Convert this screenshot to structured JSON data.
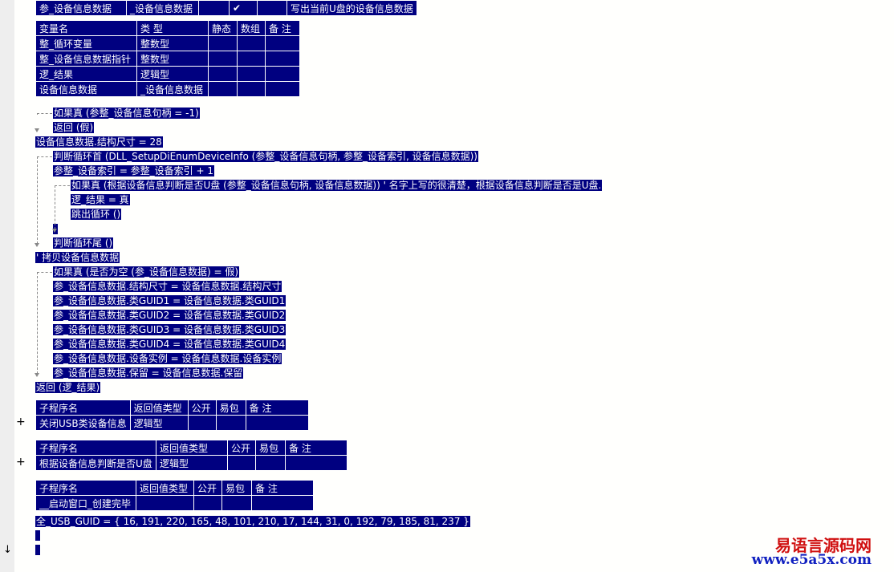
{
  "param_row": {
    "cells": [
      "参_设备信息数据",
      "_设备信息数据",
      "",
      "✔",
      "",
      "写出当前U盘的设备信息数据"
    ]
  },
  "var_table": {
    "header": [
      "变量名",
      "类 型",
      "静态",
      "数组",
      "备 注"
    ],
    "rows": [
      [
        "整_循环变量",
        "整数型",
        "",
        "",
        ""
      ],
      [
        "整_设备信息数据指针",
        "整数型",
        "",
        "",
        ""
      ],
      [
        "逻_结果",
        "逻辑型",
        "",
        "",
        ""
      ],
      [
        "设备信息数据",
        "_设备信息数据",
        "",
        "",
        ""
      ]
    ]
  },
  "code_lines": [
    {
      "text": "如果真 (参整_设备信息句柄 = -1)",
      "indent": 1
    },
    {
      "text": "返回 (假)",
      "indent": 1
    },
    {
      "text": "设备信息数据.结构尺寸 = 28",
      "indent": 0
    },
    {
      "text": "判断循环首 (DLL_SetupDiEnumDeviceInfo (参整_设备信息句柄, 参整_设备索引, 设备信息数据))",
      "indent": 1
    },
    {
      "text": "参整_设备索引 = 参整_设备索引 + 1",
      "indent": 1
    },
    {
      "text": "如果真 (根据设备信息判断是否U盘 (参整_设备信息句柄, 设备信息数据)) ' 名字上写的很清楚，根据设备信息判断是否是U盘.",
      "indent": 2
    },
    {
      "text": "逻_结果 = 真",
      "indent": 2
    },
    {
      "text": "跳出循环 ()",
      "indent": 2
    },
    {
      "text": "",
      "indent": 1,
      "cursor": true
    },
    {
      "text": "判断循环尾 ()",
      "indent": 1
    },
    {
      "text": "' 拷贝设备信息数据",
      "indent": 0
    },
    {
      "text": "如果真 (是否为空 (参_设备信息数据) = 假)",
      "indent": 1
    },
    {
      "text": "参_设备信息数据.结构尺寸 = 设备信息数据.结构尺寸",
      "indent": 1
    },
    {
      "text": "参_设备信息数据.类GUID1 = 设备信息数据.类GUID1",
      "indent": 1
    },
    {
      "text": "参_设备信息数据.类GUID2 = 设备信息数据.类GUID2",
      "indent": 1
    },
    {
      "text": "参_设备信息数据.类GUID3 = 设备信息数据.类GUID3",
      "indent": 1
    },
    {
      "text": "参_设备信息数据.类GUID4 = 设备信息数据.类GUID4",
      "indent": 1
    },
    {
      "text": "参_设备信息数据.设备实例 = 设备信息数据.设备实例",
      "indent": 1
    },
    {
      "text": "参_设备信息数据.保留 = 设备信息数据.保留",
      "indent": 1
    },
    {
      "text": "返回 (逻_结果)",
      "indent": 0
    }
  ],
  "sub_tables": [
    {
      "header": [
        "子程序名",
        "返回值类型",
        "公开",
        "易包",
        "备 注"
      ],
      "row": [
        "关闭USB类设备信息",
        "逻辑型",
        "",
        "",
        ""
      ],
      "expand": "+"
    },
    {
      "header": [
        "子程序名",
        "返回值类型",
        "公开",
        "易包",
        "备 注"
      ],
      "row": [
        "根据设备信息判断是否U盘",
        "逻辑型",
        "",
        "",
        ""
      ],
      "expand": "+"
    },
    {
      "header": [
        "子程序名",
        "返回值类型",
        "公开",
        "易包",
        "备 注"
      ],
      "row": [
        "__启动窗口_创建完毕",
        "",
        "",
        "",
        ""
      ],
      "expand": ""
    }
  ],
  "guid_line": "全_USB_GUID = { 16, 191, 220, 165, 48, 101, 210, 17, 144, 31, 0, 192, 79, 185, 81, 237 }",
  "scroll_marker": "↓",
  "watermark": {
    "name": "易语言源码网",
    "url": "www.e5a5x.com"
  },
  "colors": {
    "highlight": "#000080",
    "watermark_name": "#d01010",
    "watermark_url": "#1020c0"
  }
}
